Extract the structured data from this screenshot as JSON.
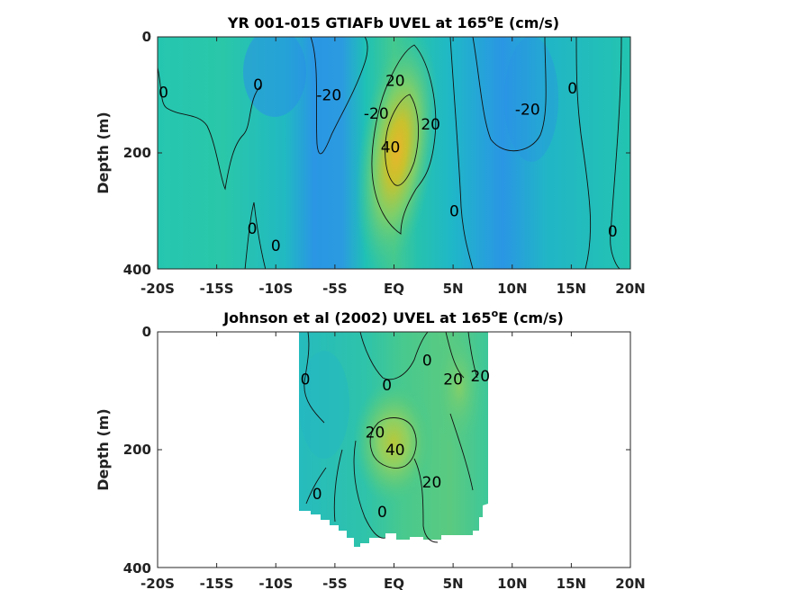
{
  "colors": {
    "negative_strong": "#2a93e6",
    "negative": "#27a6e6",
    "zero": "#1fc1b5",
    "weak_positive": "#44c98f",
    "positive": "#7bd16b",
    "strong_positive": "#c8c22e",
    "core": "#e8b52a",
    "contour": "#111111"
  },
  "chart_data": [
    {
      "type": "heatmap",
      "title": "YR 001-015 GTIAFb UVEL at 165",
      "title_superscript": "o",
      "title_suffix": "E (cm/s)",
      "xlabel": "",
      "ylabel": "Depth (m)",
      "xlim": [
        -20,
        20
      ],
      "ylim": [
        400,
        0
      ],
      "x_ticks": [
        -20,
        -15,
        -10,
        -5,
        0,
        5,
        10,
        15,
        20
      ],
      "x_tick_labels": [
        "-20S",
        "-15S",
        "-10S",
        "-5S",
        "EQ",
        "5N",
        "10N",
        "15N",
        "20N"
      ],
      "y_ticks": [
        0,
        200,
        400
      ],
      "y_tick_labels": [
        "0",
        "200",
        "400"
      ],
      "cells": [
        {
          "lat": -20,
          "depth": 0,
          "value": 2
        },
        {
          "lat": -14,
          "depth": 50,
          "value": 5
        },
        {
          "lat": -10,
          "depth": 300,
          "value": 0
        },
        {
          "lat": -5.5,
          "depth": 100,
          "value": -25
        },
        {
          "lat": -4,
          "depth": 200,
          "value": -18
        },
        {
          "lat": 0.8,
          "depth": 160,
          "value": 45
        },
        {
          "lat": 0.5,
          "depth": 80,
          "value": 22
        },
        {
          "lat": 0.5,
          "depth": 260,
          "value": 20
        },
        {
          "lat": 4,
          "depth": 300,
          "value": 0
        },
        {
          "lat": 10.5,
          "depth": 100,
          "value": -25
        },
        {
          "lat": 9,
          "depth": 250,
          "value": -5
        },
        {
          "lat": 16,
          "depth": 80,
          "value": 0
        },
        {
          "lat": 18,
          "depth": 300,
          "value": 0
        }
      ],
      "contour_labels": [
        {
          "text": "0",
          "lat": -19.5,
          "depth": 95
        },
        {
          "text": "0",
          "lat": -11.5,
          "depth": 82
        },
        {
          "text": "-20",
          "lat": -5.5,
          "depth": 100
        },
        {
          "text": "-20",
          "lat": -1.5,
          "depth": 132
        },
        {
          "text": "20",
          "lat": 0.1,
          "depth": 75
        },
        {
          "text": "20",
          "lat": 3.1,
          "depth": 150
        },
        {
          "text": "40",
          "lat": -0.3,
          "depth": 190
        },
        {
          "text": "0",
          "lat": 5.1,
          "depth": 300
        },
        {
          "text": "-20",
          "lat": 11.3,
          "depth": 125
        },
        {
          "text": "0",
          "lat": 15.1,
          "depth": 88
        },
        {
          "text": "0",
          "lat": -12.0,
          "depth": 330
        },
        {
          "text": "0",
          "lat": -10.0,
          "depth": 360
        },
        {
          "text": "0",
          "lat": 18.5,
          "depth": 335
        }
      ]
    },
    {
      "type": "heatmap",
      "title": "Johnson et al (2002) UVEL at 165",
      "title_superscript": "o",
      "title_suffix": "E (cm/s)",
      "xlabel": "",
      "ylabel": "Depth (m)",
      "xlim": [
        -20,
        20
      ],
      "ylim": [
        400,
        0
      ],
      "x_ticks": [
        -20,
        -15,
        -10,
        -5,
        0,
        5,
        10,
        15,
        20
      ],
      "x_tick_labels": [
        "-20S",
        "-15S",
        "-10S",
        "-5S",
        "EQ",
        "5N",
        "10N",
        "15N",
        "20N"
      ],
      "y_ticks": [
        0,
        200,
        400
      ],
      "y_tick_labels": [
        "0",
        "200",
        "400"
      ],
      "data_extent": {
        "lat": [
          -8,
          8
        ],
        "depth": [
          0,
          360
        ]
      },
      "cells": [
        {
          "lat": -7,
          "depth": 50,
          "value": -2
        },
        {
          "lat": -4,
          "depth": 100,
          "value": 5
        },
        {
          "lat": 0.2,
          "depth": 190,
          "value": 42
        },
        {
          "lat": 0.5,
          "depth": 250,
          "value": 25
        },
        {
          "lat": 2,
          "depth": 100,
          "value": 12
        },
        {
          "lat": 5.5,
          "depth": 80,
          "value": 25
        },
        {
          "lat": 7,
          "depth": 60,
          "value": 22
        },
        {
          "lat": 3,
          "depth": 300,
          "value": 10
        },
        {
          "lat": -6,
          "depth": 280,
          "value": 2
        }
      ],
      "contour_labels": [
        {
          "text": "0",
          "lat": -7.5,
          "depth": 80
        },
        {
          "text": "0",
          "lat": -0.6,
          "depth": 90
        },
        {
          "text": "0",
          "lat": 2.8,
          "depth": 48
        },
        {
          "text": "20",
          "lat": 5.0,
          "depth": 80
        },
        {
          "text": "20",
          "lat": 7.3,
          "depth": 75
        },
        {
          "text": "20",
          "lat": -1.6,
          "depth": 170
        },
        {
          "text": "40",
          "lat": 0.1,
          "depth": 200
        },
        {
          "text": "20",
          "lat": 3.2,
          "depth": 255
        },
        {
          "text": "0",
          "lat": -6.5,
          "depth": 275
        },
        {
          "text": "0",
          "lat": -1.0,
          "depth": 305
        }
      ]
    }
  ]
}
